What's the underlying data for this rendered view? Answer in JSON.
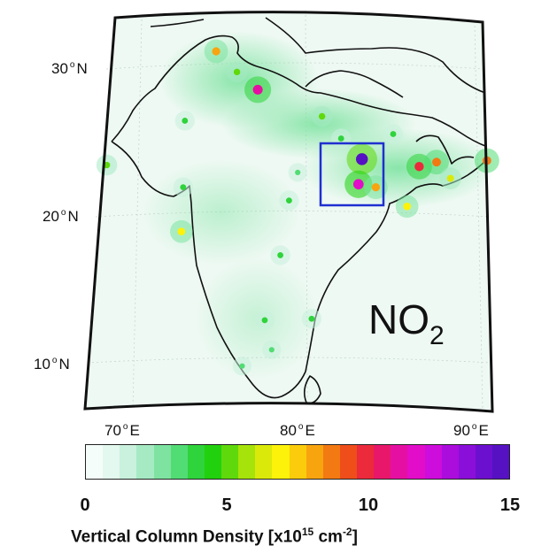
{
  "map": {
    "species_main": "NO",
    "species_sub": "2",
    "lat_labels": [
      {
        "value": "30",
        "hemi": "N"
      },
      {
        "value": "20",
        "hemi": "N"
      },
      {
        "value": "10",
        "hemi": "N"
      }
    ],
    "lon_labels": [
      {
        "value": "70",
        "hemi": "E"
      },
      {
        "value": "80",
        "hemi": "E"
      },
      {
        "value": "90",
        "hemi": "E"
      }
    ],
    "highlight_box_color": "#1f2fd0",
    "coastline_color": "#111111",
    "background_color": "#eaf8f1"
  },
  "colorbar": {
    "ticks": [
      "0",
      "5",
      "10",
      "15"
    ],
    "tick_values": [
      0,
      5,
      10,
      15
    ],
    "range": [
      0,
      15
    ],
    "label_main": "Vertical Column Density [x10",
    "label_exp1": "15",
    "label_mid": " cm",
    "label_exp2": "-2",
    "label_end": "]",
    "colors": [
      "#f4fdf9",
      "#e3f8ee",
      "#c9f1dd",
      "#a6eac3",
      "#7ee3a1",
      "#52dc74",
      "#2fd33b",
      "#22d10e",
      "#5fd90b",
      "#a6e30a",
      "#dbe90a",
      "#fdf20a",
      "#fbcc0c",
      "#f8a40f",
      "#f37912",
      "#ef4d1a",
      "#eb2a3c",
      "#e8176a",
      "#e510a2",
      "#e10dc8",
      "#cd0ddc",
      "#ab0ddd",
      "#8a0fd9",
      "#6c10cf",
      "#5612c2"
    ]
  },
  "hotspots": [
    {
      "lon": 74.8,
      "lat": 31.2,
      "level": 8
    },
    {
      "lon": 77.2,
      "lat": 28.6,
      "level": 11
    },
    {
      "lon": 73.0,
      "lat": 26.5,
      "level": 4
    },
    {
      "lon": 76.0,
      "lat": 29.8,
      "level": 5
    },
    {
      "lon": 80.9,
      "lat": 26.8,
      "level": 5
    },
    {
      "lon": 83.2,
      "lat": 23.9,
      "level": 15
    },
    {
      "lon": 83.0,
      "lat": 22.2,
      "level": 12
    },
    {
      "lon": 84.0,
      "lat": 22.0,
      "level": 8
    },
    {
      "lon": 85.8,
      "lat": 20.7,
      "level": 7
    },
    {
      "lon": 86.5,
      "lat": 23.4,
      "level": 10
    },
    {
      "lon": 87.5,
      "lat": 23.7,
      "level": 9
    },
    {
      "lon": 88.3,
      "lat": 22.6,
      "level": 6
    },
    {
      "lon": 90.4,
      "lat": 23.8,
      "level": 9
    },
    {
      "lon": 72.8,
      "lat": 19.0,
      "level": 7
    },
    {
      "lon": 72.9,
      "lat": 22.0,
      "level": 4
    },
    {
      "lon": 78.5,
      "lat": 17.4,
      "level": 4
    },
    {
      "lon": 80.3,
      "lat": 13.1,
      "level": 4
    },
    {
      "lon": 77.6,
      "lat": 13.0,
      "level": 4
    },
    {
      "lon": 79.0,
      "lat": 21.1,
      "level": 4
    },
    {
      "lon": 68.5,
      "lat": 23.5,
      "level": 5
    },
    {
      "lon": 79.5,
      "lat": 23.0,
      "level": 3
    },
    {
      "lon": 82.0,
      "lat": 25.3,
      "level": 4
    },
    {
      "lon": 78.0,
      "lat": 11.0,
      "level": 3
    },
    {
      "lon": 76.3,
      "lat": 9.9,
      "level": 3
    },
    {
      "lon": 85.0,
      "lat": 25.6,
      "level": 4
    }
  ]
}
